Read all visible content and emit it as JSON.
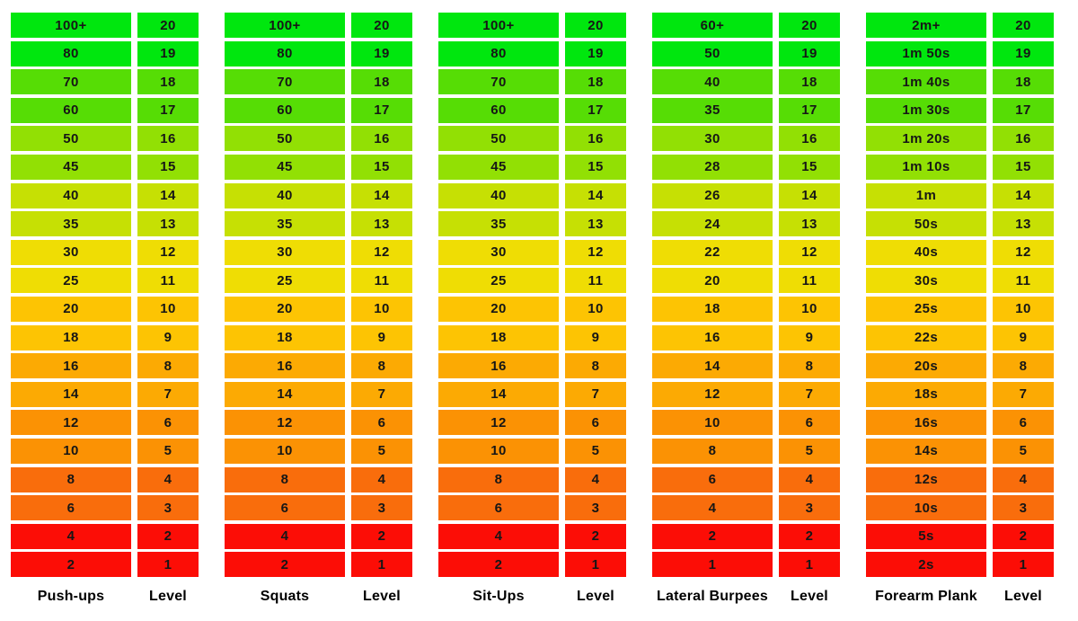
{
  "page": {
    "background_color": "#ffffff",
    "text_color": "#161616"
  },
  "level_header_label": "Level",
  "levels": [
    "20",
    "19",
    "18",
    "17",
    "16",
    "15",
    "14",
    "13",
    "12",
    "11",
    "10",
    "9",
    "8",
    "7",
    "6",
    "5",
    "4",
    "3",
    "2",
    "1"
  ],
  "row_colors_top_to_bottom": [
    "#00e70e",
    "#00e70e",
    "#56dd05",
    "#56dd05",
    "#92e004",
    "#92e004",
    "#c6e004",
    "#c6e004",
    "#efdd04",
    "#efdd04",
    "#fdc403",
    "#fdc403",
    "#fcaa03",
    "#fcaa03",
    "#fb9204",
    "#fb9204",
    "#f96d0c",
    "#f96d0c",
    "#fc0d06",
    "#fc0d06"
  ],
  "groups": [
    {
      "label": "Push-ups",
      "values": [
        "100+",
        "80",
        "70",
        "60",
        "50",
        "45",
        "40",
        "35",
        "30",
        "25",
        "20",
        "18",
        "16",
        "14",
        "12",
        "10",
        "8",
        "6",
        "4",
        "2"
      ]
    },
    {
      "label": "Squats",
      "values": [
        "100+",
        "80",
        "70",
        "60",
        "50",
        "45",
        "40",
        "35",
        "30",
        "25",
        "20",
        "18",
        "16",
        "14",
        "12",
        "10",
        "8",
        "6",
        "4",
        "2"
      ]
    },
    {
      "label": "Sit-Ups",
      "values": [
        "100+",
        "80",
        "70",
        "60",
        "50",
        "45",
        "40",
        "35",
        "30",
        "25",
        "20",
        "18",
        "16",
        "14",
        "12",
        "10",
        "8",
        "6",
        "4",
        "2"
      ]
    },
    {
      "label": "Lateral Burpees",
      "values": [
        "60+",
        "50",
        "40",
        "35",
        "30",
        "28",
        "26",
        "24",
        "22",
        "20",
        "18",
        "16",
        "14",
        "12",
        "10",
        "8",
        "6",
        "4",
        "2",
        "1"
      ]
    },
    {
      "label": "Forearm Plank",
      "values": [
        "2m+",
        "1m 50s",
        "1m 40s",
        "1m 30s",
        "1m 20s",
        "1m 10s",
        "1m",
        "50s",
        "40s",
        "30s",
        "25s",
        "22s",
        "20s",
        "18s",
        "16s",
        "14s",
        "12s",
        "10s",
        "5s",
        "2s"
      ]
    }
  ],
  "chart_data": {
    "type": "table",
    "title": "",
    "description": "Exercise progression chart mapping exercise performance to levels 20 (top, green) down to 1 (bottom, red) with a green-yellow-orange-red color scale",
    "level_column_header": "Level",
    "levels": [
      20,
      19,
      18,
      17,
      16,
      15,
      14,
      13,
      12,
      11,
      10,
      9,
      8,
      7,
      6,
      5,
      4,
      3,
      2,
      1
    ],
    "series": [
      {
        "name": "Push-ups",
        "values": [
          "100+",
          "80",
          "70",
          "60",
          "50",
          "45",
          "40",
          "35",
          "30",
          "25",
          "20",
          "18",
          "16",
          "14",
          "12",
          "10",
          "8",
          "6",
          "4",
          "2"
        ]
      },
      {
        "name": "Squats",
        "values": [
          "100+",
          "80",
          "70",
          "60",
          "50",
          "45",
          "40",
          "35",
          "30",
          "25",
          "20",
          "18",
          "16",
          "14",
          "12",
          "10",
          "8",
          "6",
          "4",
          "2"
        ]
      },
      {
        "name": "Sit-Ups",
        "values": [
          "100+",
          "80",
          "70",
          "60",
          "50",
          "45",
          "40",
          "35",
          "30",
          "25",
          "20",
          "18",
          "16",
          "14",
          "12",
          "10",
          "8",
          "6",
          "4",
          "2"
        ]
      },
      {
        "name": "Lateral Burpees",
        "values": [
          "60+",
          "50",
          "40",
          "35",
          "30",
          "28",
          "26",
          "24",
          "22",
          "20",
          "18",
          "16",
          "14",
          "12",
          "10",
          "8",
          "6",
          "4",
          "2",
          "1"
        ]
      },
      {
        "name": "Forearm Plank",
        "values": [
          "2m+",
          "1m 50s",
          "1m 40s",
          "1m 30s",
          "1m 20s",
          "1m 10s",
          "1m",
          "50s",
          "40s",
          "30s",
          "25s",
          "22s",
          "20s",
          "18s",
          "16s",
          "14s",
          "12s",
          "10s",
          "5s",
          "2s"
        ]
      }
    ],
    "row_colors_top_to_bottom": [
      "#00e70e",
      "#00e70e",
      "#56dd05",
      "#56dd05",
      "#92e004",
      "#92e004",
      "#c6e004",
      "#c6e004",
      "#efdd04",
      "#efdd04",
      "#fdc403",
      "#fdc403",
      "#fcaa03",
      "#fcaa03",
      "#fb9204",
      "#fb9204",
      "#f96d0c",
      "#f96d0c",
      "#fc0d06",
      "#fc0d06"
    ],
    "layout": {
      "grid": false,
      "legend": false,
      "axis": false
    }
  }
}
